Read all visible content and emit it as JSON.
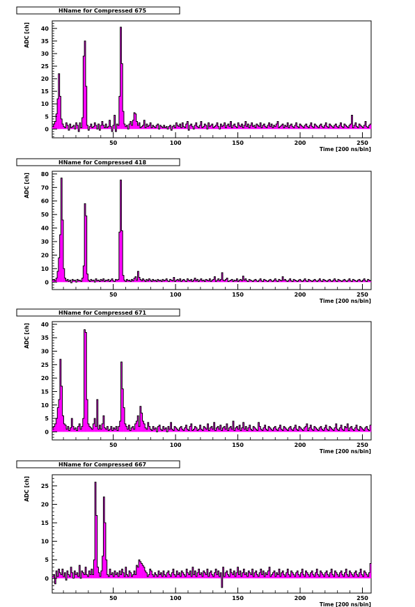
{
  "chart_data": [
    {
      "type": "bar",
      "title": "HName for Compressed 675",
      "xlabel": "Time [200 ns/bin]",
      "ylabel": "ADC [ch]",
      "xlim": [
        1,
        257
      ],
      "ylim": [
        -3.5,
        43
      ],
      "xticks": [
        50,
        100,
        150,
        200,
        250
      ],
      "yticks": [
        0,
        5,
        10,
        15,
        20,
        25,
        30,
        35,
        40
      ],
      "fill_color": "#ff00ff",
      "peaks": [
        [
          8,
          22
        ],
        [
          27,
          35
        ],
        [
          55,
          40.5
        ],
        [
          67,
          6.5
        ]
      ],
      "values": [
        1,
        2,
        3,
        6,
        12,
        22,
        13,
        4,
        2,
        1,
        0.5,
        2.5,
        1.5,
        -0.5,
        2,
        0.5,
        1,
        1.5,
        0,
        2.5,
        1.5,
        -1,
        2.5,
        0.5,
        4.5,
        29,
        35,
        17,
        1.5,
        -0.5,
        1,
        2,
        0.5,
        1,
        2.5,
        1.5,
        0,
        2,
        -0.5,
        1.5,
        3,
        1.5,
        0.5,
        2,
        0.5,
        1,
        3.5,
        1,
        -1,
        1.5,
        5.5,
        -1,
        2,
        1.5,
        13,
        40.5,
        26,
        7,
        2,
        1,
        1.5,
        0,
        2,
        3,
        1.5,
        3.5,
        6.5,
        6,
        3,
        1.5,
        2.5,
        0.5,
        1,
        1.5,
        3.5,
        0.5,
        2,
        1,
        1.5,
        2.5,
        0.5,
        1.5,
        1,
        0.5,
        1.5,
        2,
        0,
        1.5,
        1,
        0.5,
        1.5,
        0.5,
        1,
        0,
        1,
        1.5,
        -0.5,
        1,
        1.5,
        0.5,
        2.5,
        1.5,
        1,
        2,
        0.5,
        2.5,
        1,
        0.5,
        2,
        3,
        -0.5,
        1.5,
        2,
        1,
        0,
        1.5,
        2.5,
        1,
        0.5,
        1.5,
        3,
        0.5,
        1,
        2,
        1.5,
        0,
        2.5,
        1,
        1.5,
        2,
        0.5,
        1,
        1.5,
        2.5,
        1,
        0,
        2,
        1,
        1.5,
        2.5,
        0.5,
        1.5,
        2,
        1,
        3,
        0.5,
        1.5,
        2,
        1,
        0.5,
        2.5,
        1.5,
        1,
        2,
        0.5,
        1.5,
        3,
        1,
        2,
        0.5,
        1.5,
        2.5,
        1,
        1.5,
        0.5,
        2,
        1.5,
        1,
        2.5,
        0.5,
        1.5,
        2,
        1,
        0.5,
        1.5,
        2.5,
        1,
        2,
        0.5,
        1.5,
        1,
        2,
        3,
        0.5,
        1,
        1.5,
        2,
        0.5,
        1.5,
        1,
        2.5,
        0.5,
        1.5,
        2,
        1,
        0.5,
        1.5,
        2.5,
        1,
        0.5,
        2,
        1.5,
        1,
        0.5,
        1.5,
        2,
        1,
        0.5,
        1.5,
        2.5,
        1,
        0.5,
        2,
        1.5,
        1,
        0.5,
        1.5,
        2,
        1,
        0.5,
        1.5,
        2.5,
        1,
        0.5,
        2,
        1.5,
        1,
        0.5,
        1.5,
        2,
        1,
        0.5,
        1.5,
        2.5,
        1,
        0.5,
        2,
        1.5,
        1,
        0.5,
        1.5,
        2,
        5.5,
        0.5,
        1.5,
        2.5,
        1,
        0.5,
        2,
        1.5,
        1,
        0.5,
        1.5,
        3,
        1,
        0.5,
        1.5,
        2
      ]
    },
    {
      "type": "bar",
      "title": "HName for Compressed 418",
      "xlabel": "Time [200 ns/bin]",
      "ylabel": "ADC [ch]",
      "xlim": [
        1,
        257
      ],
      "ylim": [
        -5.5,
        82
      ],
      "xticks": [
        50,
        100,
        150,
        200,
        250
      ],
      "yticks": [
        0,
        10,
        20,
        30,
        40,
        50,
        60,
        70,
        80
      ],
      "fill_color": "#ff00ff",
      "peaks": [
        [
          9,
          77
        ],
        [
          27,
          58
        ],
        [
          55,
          75.5
        ],
        [
          70,
          8
        ]
      ],
      "values": [
        1.5,
        2,
        1,
        3,
        8,
        18,
        35,
        77,
        46,
        10,
        3,
        1,
        2,
        0.5,
        1.5,
        -0.5,
        2,
        1,
        1.5,
        0,
        2,
        1,
        1.5,
        0.5,
        3,
        12,
        58,
        49,
        6,
        1.5,
        0.5,
        2,
        1,
        1.5,
        0,
        2.5,
        1,
        1.5,
        0.5,
        2,
        1,
        2.5,
        0.5,
        1.5,
        1,
        2,
        0.5,
        1.5,
        2.5,
        1,
        0.5,
        2,
        1.5,
        2,
        37,
        75.5,
        38,
        5,
        1.5,
        0.5,
        2,
        1,
        1.5,
        0.5,
        2,
        1,
        3,
        4,
        1.5,
        8,
        3.5,
        2,
        1,
        2.5,
        1.5,
        0.5,
        2,
        1,
        2.5,
        1.5,
        0.5,
        2,
        1,
        1.5,
        0.5,
        2,
        1,
        1.5,
        0.5,
        2,
        1,
        1.5,
        2.5,
        1,
        0.5,
        2,
        1.5,
        1,
        3.5,
        0.5,
        1.5,
        2,
        1,
        2.5,
        0.5,
        1.5,
        2,
        1,
        0.5,
        2.5,
        1.5,
        1,
        2,
        0.5,
        1.5,
        3,
        1,
        2,
        0.5,
        1.5,
        2.5,
        1,
        1.5,
        0.5,
        2,
        1.5,
        1,
        2.5,
        0.5,
        1.5,
        2,
        4,
        0.5,
        1.5,
        2.5,
        1,
        2,
        7,
        1.5,
        1,
        2,
        3,
        0.5,
        1,
        1.5,
        2,
        0.5,
        1.5,
        1,
        2.5,
        0.5,
        1.5,
        2,
        1,
        4.5,
        1.5,
        2.5,
        1,
        0.5,
        2,
        1.5,
        1,
        0.5,
        1.5,
        2,
        1,
        0.5,
        1.5,
        2.5,
        1,
        0.5,
        2,
        1.5,
        1,
        0.5,
        1.5,
        2,
        1,
        0.5,
        1.5,
        2.5,
        1,
        0.5,
        2,
        1.5,
        1,
        4,
        1.5,
        2,
        1,
        0.5,
        1.5,
        2.5,
        1,
        0.5,
        2,
        1.5,
        1,
        0.5,
        1.5,
        2,
        1,
        0.5,
        1.5,
        2.5,
        1,
        0.5,
        2,
        1.5,
        1,
        0.5,
        1.5,
        2,
        1,
        0.5,
        1.5,
        2.5,
        1,
        0.5,
        2,
        1.5,
        1,
        0.5,
        1.5,
        2,
        1,
        0.5,
        1.5,
        2.5,
        1,
        0.5,
        2,
        1.5,
        1,
        0.5,
        1.5,
        2,
        1,
        0.5,
        1.5,
        2.5,
        1,
        0.5,
        2,
        1.5,
        1,
        0.5,
        1.5,
        2,
        1,
        0.5,
        1.5,
        2.5,
        1,
        0.5,
        2,
        1.5,
        1
      ]
    },
    {
      "type": "bar",
      "title": "HName for Compressed 671",
      "xlabel": "Time [200 ns/bin]",
      "ylabel": "ADC [ch]",
      "xlim": [
        1,
        257
      ],
      "ylim": [
        -3,
        41
      ],
      "xticks": [
        50,
        100,
        150,
        200,
        250
      ],
      "yticks": [
        0,
        5,
        10,
        15,
        20,
        25,
        30,
        35,
        40
      ],
      "fill_color": "#ff00ff",
      "peaks": [
        [
          8,
          27
        ],
        [
          27,
          38
        ],
        [
          35,
          12
        ],
        [
          55,
          26
        ],
        [
          70,
          9.5
        ]
      ],
      "values": [
        1.5,
        2,
        3,
        5,
        9,
        12,
        27,
        17,
        6,
        3,
        2.5,
        1,
        2,
        0.5,
        1.5,
        5,
        2,
        1,
        1.5,
        0.5,
        2,
        3,
        1,
        2,
        5,
        38,
        37,
        12,
        3,
        2,
        1.5,
        1,
        3,
        5,
        2,
        12,
        1,
        2.5,
        1,
        3,
        6,
        1.5,
        1,
        2,
        0.5,
        1,
        2,
        0.5,
        1.5,
        1,
        2,
        0.5,
        2,
        4,
        26,
        16,
        9,
        3,
        2,
        1,
        2.5,
        0.5,
        1.5,
        2,
        1,
        3,
        4,
        6,
        2,
        9.5,
        7,
        4,
        3,
        1.5,
        1,
        3.5,
        2,
        1,
        0.5,
        2,
        1,
        1.5,
        0,
        2,
        2.5,
        1,
        0.5,
        2,
        1,
        1.5,
        0,
        2,
        1,
        3.5,
        1,
        0.5,
        2,
        1.5,
        1,
        0.5,
        1.5,
        2,
        1,
        0.5,
        1.5,
        2.5,
        1,
        0.5,
        2,
        3,
        0.5,
        1,
        2,
        1.5,
        0.5,
        1,
        2.5,
        1,
        0.5,
        2,
        1.5,
        1,
        3,
        0.5,
        1.5,
        2,
        1,
        3.5,
        0.5,
        1.5,
        2,
        1,
        2.5,
        0.5,
        1.5,
        2,
        1,
        3,
        0.5,
        1.5,
        2,
        1,
        4,
        0.5,
        1.5,
        2,
        1,
        2.5,
        0.5,
        1.5,
        3.5,
        1,
        2,
        0.5,
        1.5,
        2.5,
        1,
        0.5,
        2,
        1.5,
        1,
        0.5,
        3.5,
        2,
        1,
        0.5,
        1.5,
        2.5,
        1,
        0.5,
        2,
        1.5,
        1,
        0.5,
        1.5,
        2,
        1,
        0.5,
        1.5,
        2.5,
        1,
        0.5,
        2,
        1.5,
        1,
        0.5,
        1.5,
        2,
        1,
        0.5,
        1.5,
        2.5,
        1,
        0.5,
        2,
        1.5,
        1,
        0.5,
        1.5,
        2,
        3,
        0.5,
        1.5,
        2.5,
        1,
        0.5,
        2,
        1.5,
        1,
        0.5,
        1.5,
        2,
        1,
        0.5,
        1.5,
        2.5,
        1,
        0.5,
        2,
        1.5,
        1,
        0.5,
        1.5,
        3,
        1,
        0.5,
        1.5,
        2.5,
        1,
        0.5,
        2,
        1.5,
        3,
        0.5,
        1.5,
        2,
        1,
        0.5,
        1.5,
        2.5,
        1,
        0.5,
        2,
        1.5,
        1,
        0.5,
        1.5,
        2,
        1,
        0.5,
        2.5
      ]
    },
    {
      "type": "bar",
      "title": "HName for Compressed 667",
      "xlabel": "Time [200 ns/bin]",
      "ylabel": "ADC [ch]",
      "xlim": [
        1,
        257
      ],
      "ylim": [
        -4,
        28
      ],
      "xticks": [
        50,
        100,
        150,
        200,
        250
      ],
      "yticks": [
        0,
        5,
        10,
        15,
        20,
        25
      ],
      "fill_color": "#ff00ff",
      "peaks": [
        [
          36,
          26
        ],
        [
          43,
          22
        ],
        [
          73,
          5
        ],
        [
          140,
          -2.5
        ]
      ],
      "values": [
        0.5,
        1,
        -1.5,
        2,
        0.5,
        2.5,
        1.5,
        1,
        2.5,
        0.5,
        1.5,
        -0.5,
        2,
        1,
        0.5,
        3,
        1.5,
        0,
        2,
        1,
        1.5,
        0.5,
        3.5,
        0,
        2,
        1.5,
        1,
        3,
        1,
        0.5,
        2,
        1,
        2.5,
        1,
        5,
        26,
        17,
        3,
        1.5,
        0.5,
        2,
        6,
        22,
        15,
        5,
        1,
        0.5,
        2.5,
        1,
        1.5,
        0.5,
        2,
        1,
        1.5,
        0.5,
        2,
        1,
        2.5,
        1.5,
        0.5,
        3,
        1,
        0.5,
        2,
        1.5,
        0.5,
        1,
        2,
        1,
        3.5,
        3,
        5,
        4.5,
        4,
        3.5,
        3,
        2,
        1.5,
        0.5,
        1,
        2.5,
        2,
        1,
        0.5,
        1.5,
        1,
        0.5,
        2,
        1,
        1.5,
        0.5,
        2,
        1,
        0.5,
        1.5,
        2,
        1,
        0.5,
        1.5,
        2.5,
        1,
        0.5,
        2,
        1,
        1.5,
        0.5,
        2,
        1.5,
        1,
        0.5,
        2.5,
        1.5,
        1,
        2,
        0.5,
        3,
        1,
        2,
        0.5,
        1.5,
        2.5,
        1,
        1.5,
        0.5,
        2,
        1.5,
        1,
        2.5,
        0.5,
        1.5,
        2,
        1,
        0.5,
        1.5,
        2.5,
        1,
        2,
        0.5,
        1.5,
        -2.5,
        3,
        0.5,
        1.5,
        2,
        1,
        0.5,
        2.5,
        1.5,
        1,
        2,
        0.5,
        1.5,
        3,
        1,
        2,
        0.5,
        1.5,
        2.5,
        1,
        1.5,
        0.5,
        2,
        1.5,
        1,
        2.5,
        0.5,
        1.5,
        2,
        1,
        0.5,
        1.5,
        2.5,
        1,
        2,
        0.5,
        1.5,
        1,
        2,
        3,
        0.5,
        1,
        1.5,
        2,
        0.5,
        1.5,
        1,
        2.5,
        0.5,
        1.5,
        2,
        1,
        0.5,
        1.5,
        2.5,
        1,
        0.5,
        2,
        1.5,
        1,
        0.5,
        1.5,
        2,
        1,
        0.5,
        1.5,
        2.5,
        1,
        0.5,
        2,
        1.5,
        1,
        0.5,
        1.5,
        2,
        1,
        0.5,
        1.5,
        2.5,
        1,
        0.5,
        2,
        1.5,
        1,
        0.5,
        1.5,
        2,
        1,
        0.5,
        1.5,
        2.5,
        1,
        0.5,
        2,
        1.5,
        1,
        0.5,
        1.5,
        2,
        1,
        0.5,
        1.5,
        2.5,
        1,
        0.5,
        2,
        1.5,
        1,
        0.5,
        1.5,
        2,
        1,
        0.5,
        1.5,
        2.5,
        1,
        0.5,
        2,
        1.5,
        1,
        0.5,
        1.5,
        4
      ]
    }
  ]
}
